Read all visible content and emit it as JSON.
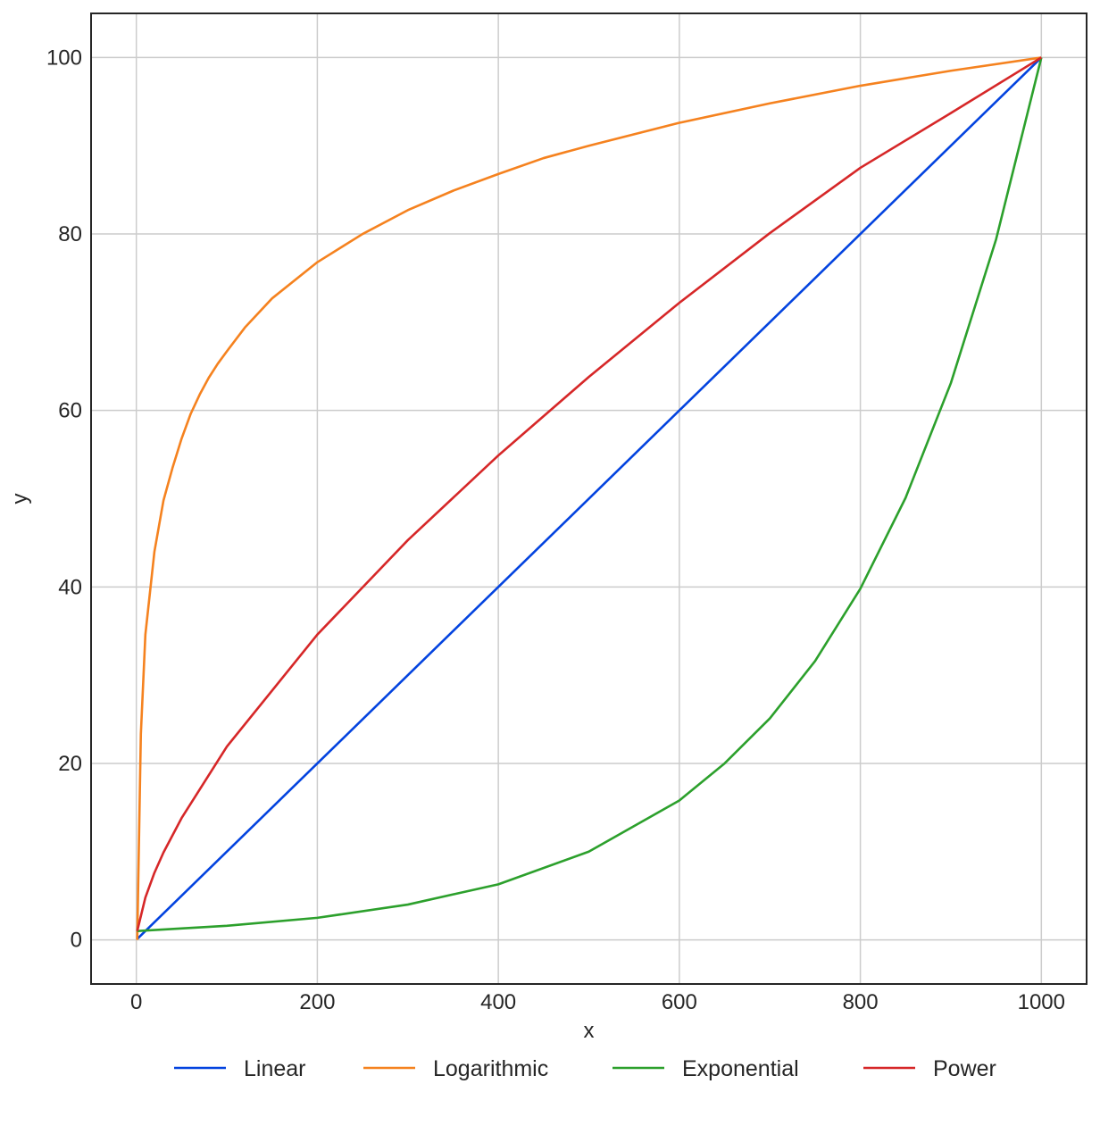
{
  "chart_data": {
    "type": "line",
    "title": "",
    "xlabel": "x",
    "ylabel": "y",
    "xlim": [
      -50,
      1050
    ],
    "ylim": [
      -5,
      105
    ],
    "xticks": [
      0,
      200,
      400,
      600,
      800,
      1000
    ],
    "yticks": [
      0,
      20,
      40,
      60,
      80,
      100
    ],
    "grid": true,
    "legend_position": "bottom-center",
    "series": [
      {
        "name": "Linear",
        "color": "#0343df",
        "x": [
          1,
          1000
        ],
        "y": [
          0.1,
          100
        ]
      },
      {
        "name": "Logarithmic",
        "color": "#f5821f",
        "x": [
          1,
          5,
          10,
          20,
          30,
          40,
          50,
          60,
          70,
          80,
          90,
          100,
          120,
          150,
          200,
          250,
          300,
          350,
          400,
          450,
          500,
          600,
          700,
          800,
          900,
          1000
        ],
        "y": [
          0,
          23.3,
          34.6,
          44.0,
          49.8,
          53.5,
          56.8,
          59.6,
          61.8,
          63.7,
          65.3,
          66.7,
          69.4,
          72.7,
          76.8,
          80.0,
          82.7,
          84.9,
          86.8,
          88.6,
          90.0,
          92.6,
          94.8,
          96.8,
          98.5,
          100
        ]
      },
      {
        "name": "Exponential",
        "color": "#2ca02c",
        "x": [
          1,
          100,
          200,
          300,
          400,
          500,
          600,
          650,
          700,
          750,
          800,
          850,
          900,
          950,
          1000
        ],
        "y": [
          1.0,
          1.6,
          2.5,
          4.0,
          6.3,
          10.0,
          15.8,
          20.0,
          25.1,
          31.6,
          39.8,
          50.1,
          63.1,
          79.4,
          100
        ]
      },
      {
        "name": "Power",
        "color": "#d62728",
        "x": [
          1,
          10,
          20,
          30,
          50,
          100,
          200,
          300,
          400,
          500,
          600,
          700,
          800,
          900,
          1000
        ],
        "y": [
          1.0,
          4.8,
          7.6,
          9.9,
          13.8,
          21.9,
          34.6,
          45.3,
          54.9,
          63.8,
          72.2,
          80.1,
          87.5,
          93.7,
          100
        ]
      }
    ]
  }
}
